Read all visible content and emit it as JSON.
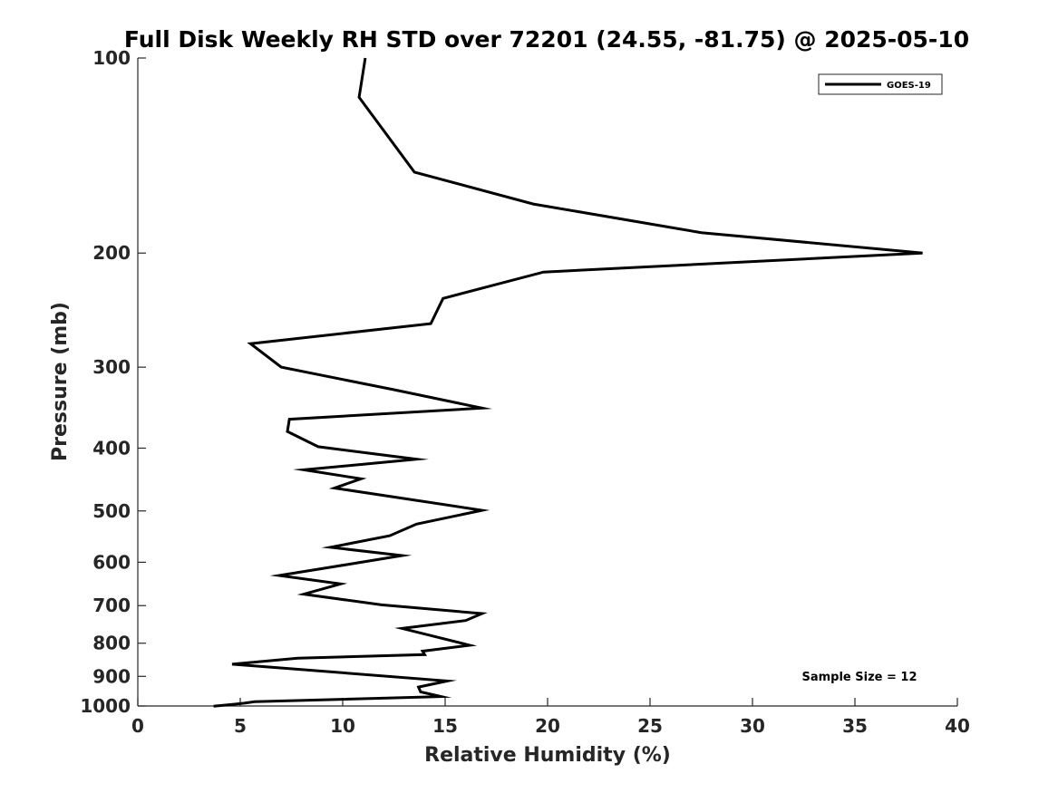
{
  "chart_data": {
    "type": "line",
    "title": "Full Disk Weekly RH STD over 72201 (24.55, -81.75) @ 2025-05-10",
    "xlabel": "Relative Humidity (%)",
    "ylabel": "Pressure (mb)",
    "xlim": [
      0,
      40
    ],
    "ylim": [
      100,
      1000
    ],
    "yscale": "log",
    "y_reversed": true,
    "grid": false,
    "x_ticks": [
      0,
      5,
      10,
      15,
      20,
      25,
      30,
      35,
      40
    ],
    "x_tick_labels": [
      "0",
      "5",
      "10",
      "15",
      "20",
      "25",
      "30",
      "35",
      "40"
    ],
    "y_ticks": [
      100,
      200,
      300,
      400,
      500,
      600,
      700,
      800,
      900,
      1000
    ],
    "y_tick_labels": [
      "100",
      "200",
      "300",
      "400",
      "500",
      "600",
      "700",
      "800",
      "900",
      "1000"
    ],
    "legend": {
      "position": "top-right",
      "entries": [
        "GOES-19"
      ]
    },
    "annotation": "Sample Size = 12",
    "series": [
      {
        "name": "GOES-19",
        "color": "#000000",
        "x": [
          11.1,
          10.8,
          13.5,
          19.3,
          27.5,
          38.3,
          19.8,
          14.9,
          14.3,
          5.5,
          7.0,
          12.5,
          16.8,
          7.4,
          7.3,
          8.8,
          13.6,
          8.1,
          10.9,
          9.6,
          16.8,
          13.6,
          12.3,
          9.4,
          12.9,
          10.2,
          6.9,
          9.9,
          8.1,
          11.9,
          16.8,
          16.0,
          12.9,
          14.4,
          16.2,
          13.9,
          14.0,
          7.8,
          4.6,
          8.9,
          15.1,
          13.7,
          13.8,
          14.8,
          5.7,
          5.2,
          3.7
        ],
        "y": [
          100,
          115,
          150,
          168,
          186,
          200,
          214,
          235,
          257,
          276,
          300,
          325,
          347,
          361,
          377,
          398,
          416,
          432,
          446,
          461,
          499,
          524,
          546,
          569,
          586,
          605,
          629,
          648,
          672,
          698,
          720,
          738,
          759,
          780,
          806,
          823,
          833,
          844,
          862,
          883,
          915,
          935,
          951,
          967,
          985,
          990,
          1001
        ]
      }
    ]
  }
}
